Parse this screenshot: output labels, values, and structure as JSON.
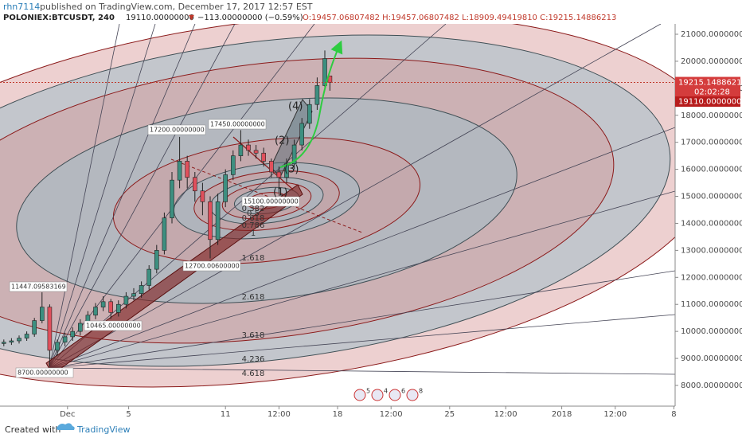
{
  "chart_data": {
    "type": "candlestick",
    "header": {
      "user": "rhn7114",
      "published": "published on TradingView.com, December 17, 2017 12:57 EST",
      "symbol": "POLONIEX:BTCUSDT, 240",
      "price": "19110.00000000",
      "arrow": "▼",
      "change": "−113.00000000 (−0.59%)",
      "ohlc": "O:19457.06807482 H:19457.06807482 L:18909.49419810 C:19215.14886213"
    },
    "candles": {
      "x": [
        0,
        3,
        6,
        9,
        12,
        15,
        18,
        21,
        24,
        27,
        30,
        33,
        36,
        39,
        42,
        45,
        48,
        51,
        54,
        57,
        60,
        63,
        66,
        69,
        72,
        75,
        78,
        81,
        84,
        87,
        90,
        93,
        96,
        99,
        102,
        105,
        108,
        111,
        114,
        117,
        120,
        123,
        126,
        128
      ],
      "open": [
        9550,
        9600,
        9650,
        9750,
        9900,
        10400,
        10900,
        9300,
        9600,
        9800,
        10000,
        10300,
        10600,
        10900,
        11100,
        10700,
        11000,
        11300,
        11400,
        11700,
        12300,
        13000,
        14200,
        15600,
        16300,
        15700,
        15200,
        14800,
        13400,
        14800,
        15800,
        16500,
        16900,
        16700,
        16600,
        16300,
        15900,
        15700,
        16200,
        16900,
        17700,
        18400,
        19100,
        19457.06807482
      ],
      "high": [
        9700,
        9750,
        9850,
        10000,
        10500,
        11447,
        11000,
        9700,
        9950,
        10150,
        10450,
        10750,
        11050,
        11300,
        11200,
        11150,
        11450,
        11600,
        11850,
        12450,
        13200,
        14400,
        15900,
        17200,
        16500,
        15900,
        15500,
        15000,
        15100,
        16000,
        16700,
        17450,
        17100,
        16900,
        16800,
        16400,
        16100,
        16400,
        17100,
        17900,
        18600,
        19400,
        20400,
        19457.06807482
      ],
      "low": [
        9450,
        9500,
        9550,
        9650,
        9800,
        10300,
        8700,
        9100,
        9450,
        9650,
        9850,
        10150,
        10450,
        10750,
        10465,
        10550,
        10850,
        11150,
        11250,
        11550,
        12150,
        12850,
        14000,
        15300,
        15300,
        14800,
        14300,
        12700,
        13200,
        14600,
        15600,
        16300,
        16500,
        16400,
        16100,
        15700,
        15100,
        15500,
        16000,
        16700,
        17500,
        18200,
        18900,
        18909.4941981
      ],
      "close": [
        9600,
        9650,
        9750,
        9900,
        10400,
        10900,
        9300,
        9600,
        9800,
        10000,
        10300,
        10600,
        10900,
        11100,
        10700,
        11000,
        11300,
        11400,
        11700,
        12300,
        13000,
        14200,
        15600,
        16300,
        15700,
        15200,
        14800,
        13400,
        14800,
        15800,
        16500,
        16900,
        16700,
        16600,
        16300,
        15900,
        15700,
        16200,
        16900,
        17700,
        18400,
        19100,
        20100,
        19215.14886213
      ],
      "up_color": "#3d8f80",
      "down_color": "#e0505c"
    },
    "xlim": [
      -1.5,
      263.5
    ],
    "xticks": [
      {
        "value": 25,
        "label": "Dec"
      },
      {
        "value": 49,
        "label": "5"
      },
      {
        "value": 87,
        "label": "11"
      },
      {
        "value": 108,
        "label": "12:00"
      },
      {
        "value": 131,
        "label": "18"
      },
      {
        "value": 152,
        "label": "12:00"
      },
      {
        "value": 175,
        "label": "25"
      },
      {
        "value": 197,
        "label": "12:00"
      },
      {
        "value": 219,
        "label": "2018"
      },
      {
        "value": 240,
        "label": "12:00"
      },
      {
        "value": 263,
        "label": "8"
      }
    ],
    "ylim": [
      7233,
      21383
    ],
    "yticks": [
      {
        "value": 8000,
        "label": "8000.00000000"
      },
      {
        "value": 9000,
        "label": "9000.00000000"
      },
      {
        "value": 10000,
        "label": "10000.00000000"
      },
      {
        "value": 11000,
        "label": "11000.00000000"
      },
      {
        "value": 12000,
        "label": "12000.00000000"
      },
      {
        "value": 13000,
        "label": "13000.00000000"
      },
      {
        "value": 14000,
        "label": "14000.00000000"
      },
      {
        "value": 15000,
        "label": "15000.00000000"
      },
      {
        "value": 16000,
        "label": "16000.00000000"
      },
      {
        "value": 17000,
        "label": "17000.00000000"
      },
      {
        "value": 18000,
        "label": "18000.00000000"
      },
      {
        "value": 19000,
        "label": "19000.00000000"
      },
      {
        "value": 20000,
        "label": "20000.00000000"
      },
      {
        "value": 21000,
        "label": "21000.00000000"
      }
    ],
    "last_price": {
      "value": 19215.14886213,
      "label": "19215.14886213"
    },
    "countdown": "02:02:28",
    "bid_price": {
      "value": 19110,
      "label": "19110.00000000"
    },
    "price_notes": [
      "11447.09583169",
      "8700.00000000",
      "10465.00000000",
      "17200.00000000",
      "12700.00600000",
      "17450.00000000",
      "15100.00000000"
    ],
    "waves": [
      "(1)",
      "(2)",
      "(3)",
      "(4)"
    ],
    "fib_levels": [
      "0.382",
      "0.5",
      "0.618",
      "0.786",
      "1",
      "1.618",
      "2.618",
      "3.618",
      "4.236",
      "4.618"
    ],
    "events": [
      "5",
      "4",
      "6",
      "8"
    ],
    "footer": {
      "created": "Created with",
      "brand": "TradingView"
    }
  }
}
